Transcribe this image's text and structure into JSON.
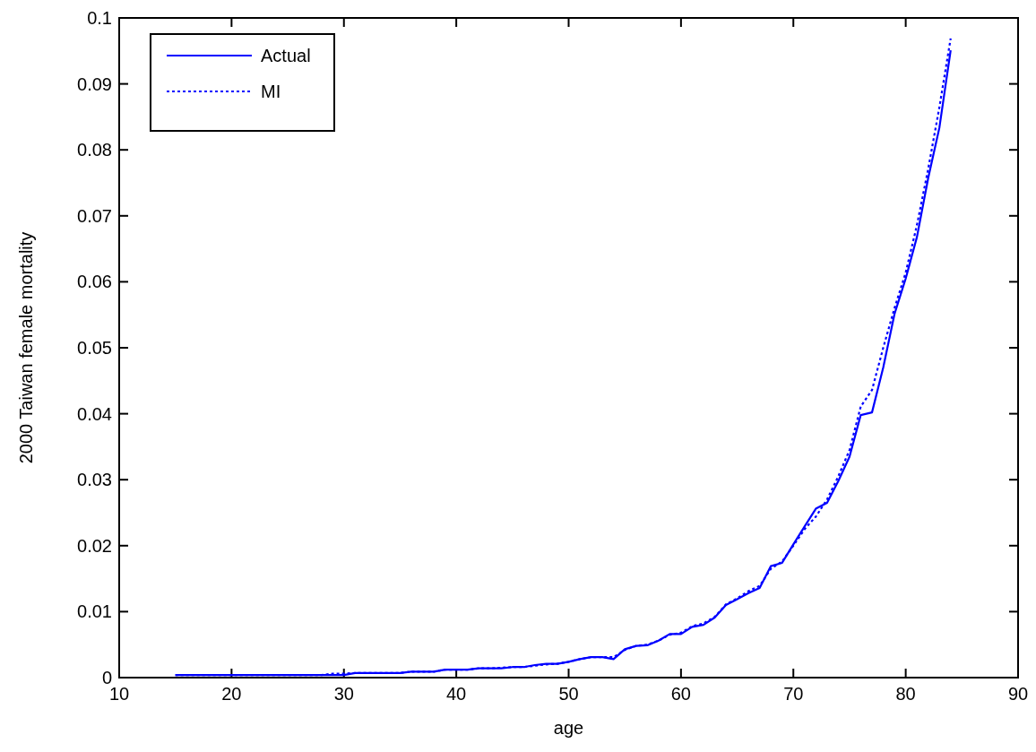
{
  "chart_data": {
    "type": "line",
    "xlabel": "age",
    "ylabel": "2000 Taiwan female mortality",
    "x": [
      15,
      16,
      17,
      18,
      19,
      20,
      21,
      22,
      23,
      24,
      25,
      26,
      27,
      28,
      29,
      30,
      31,
      32,
      33,
      34,
      35,
      36,
      37,
      38,
      39,
      40,
      41,
      42,
      43,
      44,
      45,
      46,
      47,
      48,
      49,
      50,
      51,
      52,
      53,
      54,
      55,
      56,
      57,
      58,
      59,
      60,
      61,
      62,
      63,
      64,
      65,
      66,
      67,
      68,
      69,
      70,
      71,
      72,
      73,
      74,
      75,
      76,
      77,
      78,
      79,
      80,
      81,
      82,
      83,
      84
    ],
    "series": [
      {
        "name": "Actual",
        "color": "#0000ff",
        "line_style": "solid",
        "values": [
          0.0004,
          0.0004,
          0.0004,
          0.0004,
          0.0004,
          0.0004,
          0.0004,
          0.0004,
          0.0004,
          0.0004,
          0.0004,
          0.0004,
          0.0004,
          0.0004,
          0.0004,
          0.0004,
          0.0007,
          0.0007,
          0.0007,
          0.0007,
          0.0007,
          0.0009,
          0.0009,
          0.0009,
          0.0012,
          0.0012,
          0.0012,
          0.0014,
          0.0014,
          0.0014,
          0.0016,
          0.0016,
          0.0019,
          0.0021,
          0.0021,
          0.0024,
          0.0028,
          0.0031,
          0.0031,
          0.0028,
          0.0043,
          0.0048,
          0.0049,
          0.0056,
          0.0066,
          0.0066,
          0.0077,
          0.008,
          0.0091,
          0.011,
          0.0119,
          0.0128,
          0.0136,
          0.0169,
          0.0174,
          0.0202,
          0.0229,
          0.0256,
          0.0265,
          0.0298,
          0.0335,
          0.0398,
          0.0402,
          0.047,
          0.0551,
          0.0605,
          0.0668,
          0.0757,
          0.0834,
          0.0951
        ]
      },
      {
        "name": "MI",
        "color": "#0000ff",
        "line_style": "dotted",
        "values": [
          0.0004,
          0.0004,
          0.0004,
          0.0004,
          0.0004,
          0.0004,
          0.0004,
          0.0004,
          0.0004,
          0.0004,
          0.0004,
          0.0004,
          0.0004,
          0.0004,
          0.0006,
          0.0006,
          0.0007,
          0.0007,
          0.0007,
          0.0007,
          0.0007,
          0.0009,
          0.0009,
          0.0009,
          0.0012,
          0.0012,
          0.0012,
          0.0014,
          0.0014,
          0.0015,
          0.0016,
          0.0016,
          0.0018,
          0.002,
          0.0021,
          0.0024,
          0.0028,
          0.0031,
          0.0031,
          0.0031,
          0.0042,
          0.0048,
          0.005,
          0.0056,
          0.0065,
          0.0068,
          0.0078,
          0.0082,
          0.0092,
          0.0111,
          0.012,
          0.0131,
          0.0139,
          0.0165,
          0.0176,
          0.02,
          0.0225,
          0.0244,
          0.027,
          0.0305,
          0.0345,
          0.0411,
          0.0436,
          0.05,
          0.056,
          0.0614,
          0.0686,
          0.0771,
          0.0865,
          0.0969
        ]
      }
    ],
    "xlim": [
      10,
      90
    ],
    "xticks": [
      10,
      20,
      30,
      40,
      50,
      60,
      70,
      80,
      90
    ],
    "ylim": [
      0,
      0.1
    ],
    "yticks": [
      0,
      0.01,
      0.02,
      0.03,
      0.04,
      0.05,
      0.06,
      0.07,
      0.08,
      0.09,
      0.1
    ],
    "grid": false,
    "legend": "top left",
    "marker": "none"
  }
}
